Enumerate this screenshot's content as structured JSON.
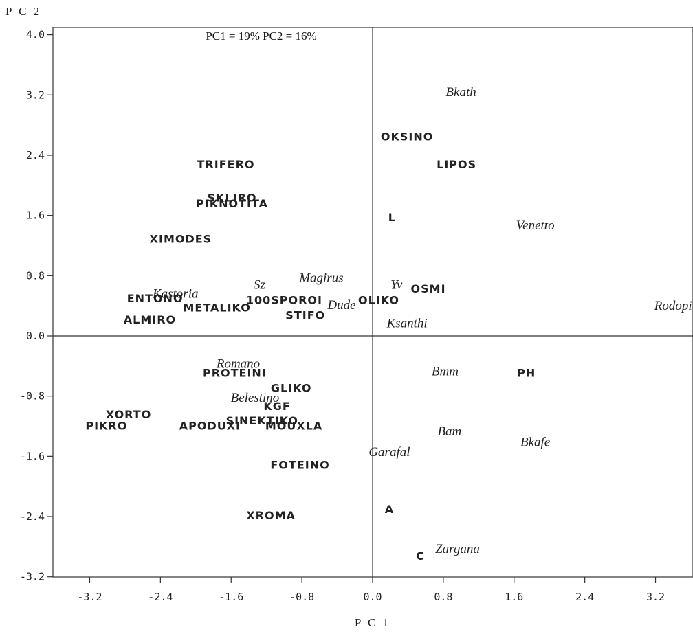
{
  "chart_data": {
    "type": "scatter",
    "title": "",
    "annotation": "PC1 = 19%  PC2 = 16%",
    "xlabel": "P C 1",
    "ylabel": "P C 2",
    "xlim": [
      -3.6,
      4.0
    ],
    "ylim": [
      -3.2,
      4.0
    ],
    "xticks": [
      -3.2,
      -2.4,
      -1.6,
      -0.8,
      0.0,
      0.8,
      1.6,
      2.4,
      3.2
    ],
    "xtick_labels": [
      "-3.2",
      "-2.4",
      "-1.6",
      "-0.8",
      "0.0",
      "0.8",
      "1.6",
      "2.4",
      "3.2"
    ],
    "yticks": [
      4.0,
      3.2,
      2.4,
      1.6,
      0.8,
      0.0,
      -0.8,
      -1.6,
      -2.4,
      -3.2
    ],
    "ytick_labels": [
      "4.0",
      "3.2",
      "2.4",
      "1.6",
      "0.8",
      "0.0",
      "-0.8",
      "-1.6",
      "-2.4",
      "-3.2"
    ],
    "grid": false,
    "zero_lines": true,
    "points": [
      {
        "label": "TRIFERO",
        "x": -1.66,
        "y": 2.28,
        "style": "sans"
      },
      {
        "label": "SKLIRO",
        "x": -1.59,
        "y": 1.84,
        "style": "sans"
      },
      {
        "label": "PIKNOTITA",
        "x": -1.59,
        "y": 1.76,
        "style": "sans"
      },
      {
        "label": "XIMODES",
        "x": -2.17,
        "y": 1.29,
        "style": "sans"
      },
      {
        "label": "ENTONO",
        "x": -2.46,
        "y": 0.5,
        "style": "sans"
      },
      {
        "label": "Kastoria",
        "x": -2.23,
        "y": 0.56,
        "style": "serif"
      },
      {
        "label": "METALIKO",
        "x": -1.76,
        "y": 0.38,
        "style": "sans"
      },
      {
        "label": "ALMIRO",
        "x": -2.52,
        "y": 0.22,
        "style": "sans"
      },
      {
        "label": "Sz",
        "x": -1.28,
        "y": 0.68,
        "style": "serif"
      },
      {
        "label": "100SPOROI",
        "x": -1.0,
        "y": 0.48,
        "style": "sans"
      },
      {
        "label": "Magirus",
        "x": -0.58,
        "y": 0.77,
        "style": "serif"
      },
      {
        "label": "OLIKO",
        "x": 0.07,
        "y": 0.48,
        "style": "sans"
      },
      {
        "label": "Dude",
        "x": -0.35,
        "y": 0.41,
        "style": "serif"
      },
      {
        "label": "STIFO",
        "x": -0.76,
        "y": 0.28,
        "style": "sans"
      },
      {
        "label": "Ksanthi",
        "x": 0.39,
        "y": 0.17,
        "style": "serif"
      },
      {
        "label": "Yv",
        "x": 0.27,
        "y": 0.68,
        "style": "serif"
      },
      {
        "label": "OSMI",
        "x": 0.63,
        "y": 0.63,
        "style": "sans"
      },
      {
        "label": "OKSINO",
        "x": 0.39,
        "y": 2.65,
        "style": "sans"
      },
      {
        "label": "LIPOS",
        "x": 0.95,
        "y": 2.28,
        "style": "sans"
      },
      {
        "label": "L",
        "x": 0.22,
        "y": 1.58,
        "style": "sans"
      },
      {
        "label": "Bkath",
        "x": 1.0,
        "y": 3.24,
        "style": "serif"
      },
      {
        "label": "Venetto",
        "x": 1.84,
        "y": 1.47,
        "style": "serif"
      },
      {
        "label": "Rodopi",
        "x": 3.4,
        "y": 0.4,
        "style": "serif"
      },
      {
        "label": "Romano",
        "x": -1.52,
        "y": -0.37,
        "style": "serif"
      },
      {
        "label": "PROTEINI",
        "x": -1.56,
        "y": -0.49,
        "style": "sans"
      },
      {
        "label": "GLIKO",
        "x": -0.92,
        "y": -0.69,
        "style": "sans"
      },
      {
        "label": "Belestino",
        "x": -1.33,
        "y": -0.82,
        "style": "serif"
      },
      {
        "label": "KGF",
        "x": -1.08,
        "y": -0.93,
        "style": "sans"
      },
      {
        "label": "XORTO",
        "x": -2.76,
        "y": -1.04,
        "style": "sans"
      },
      {
        "label": "PIKRO",
        "x": -3.01,
        "y": -1.19,
        "style": "sans"
      },
      {
        "label": "SINEKTIKO",
        "x": -1.25,
        "y": -1.12,
        "style": "sans"
      },
      {
        "label": "APODUXI",
        "x": -1.84,
        "y": -1.19,
        "style": "sans"
      },
      {
        "label": "MOUXLA",
        "x": -0.89,
        "y": -1.19,
        "style": "sans"
      },
      {
        "label": "FOTEINO",
        "x": -0.82,
        "y": -1.71,
        "style": "sans"
      },
      {
        "label": "XROMA",
        "x": -1.15,
        "y": -2.38,
        "style": "sans"
      },
      {
        "label": "Bmm",
        "x": 0.82,
        "y": -0.47,
        "style": "serif"
      },
      {
        "label": "PH",
        "x": 1.74,
        "y": -0.49,
        "style": "sans"
      },
      {
        "label": "Bam",
        "x": 0.87,
        "y": -1.27,
        "style": "serif"
      },
      {
        "label": "Bkafe",
        "x": 1.84,
        "y": -1.41,
        "style": "serif"
      },
      {
        "label": "Garafal",
        "x": 0.19,
        "y": -1.54,
        "style": "serif"
      },
      {
        "label": "A",
        "x": 0.19,
        "y": -2.3,
        "style": "sans"
      },
      {
        "label": "C",
        "x": 0.54,
        "y": -2.92,
        "style": "sans"
      },
      {
        "label": "Zargana",
        "x": 0.96,
        "y": -2.83,
        "style": "serif"
      }
    ]
  }
}
